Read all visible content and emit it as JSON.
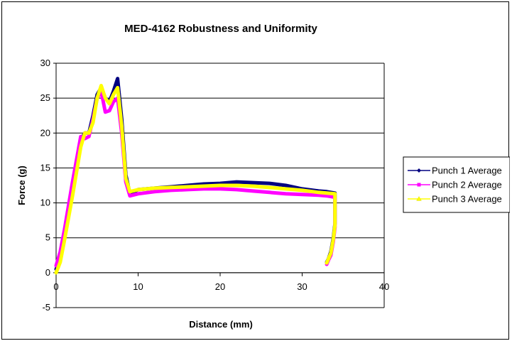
{
  "chart_data": {
    "type": "line",
    "title": "MED-4162 Robustness and Uniformity",
    "xlabel": "Distance (mm)",
    "ylabel": "Force (g)",
    "xlim": [
      0,
      40
    ],
    "ylim": [
      -5,
      30
    ],
    "xticks": [
      0,
      10,
      20,
      30,
      40
    ],
    "yticks": [
      -5,
      0,
      5,
      10,
      15,
      20,
      25,
      30
    ],
    "grid": "horizontal",
    "legend_position": "right",
    "series": [
      {
        "name": "Punch 1 Average",
        "color": "#000080",
        "x": [
          0,
          0.5,
          1,
          2,
          3,
          3.5,
          4,
          4.5,
          5,
          5.5,
          6,
          6.5,
          7,
          7.5,
          8,
          8.5,
          9,
          10,
          12,
          14,
          16,
          18,
          20,
          22,
          24,
          26,
          28,
          30,
          32,
          33,
          34,
          34,
          33.8,
          33.5,
          33.2,
          33
        ],
        "y": [
          0.5,
          2,
          5,
          12,
          19,
          20,
          20,
          22.5,
          25.5,
          26.5,
          25,
          24.5,
          26,
          27.8,
          22,
          14,
          11.3,
          11.9,
          12.1,
          12.3,
          12.5,
          12.7,
          12.8,
          13,
          12.9,
          12.8,
          12.5,
          12,
          11.7,
          11.6,
          11.4,
          7,
          5,
          3,
          2,
          1.5
        ]
      },
      {
        "name": "Punch 2 Average",
        "color": "#ff00ff",
        "x": [
          0,
          0.5,
          1,
          2,
          3,
          3.5,
          4,
          4.5,
          5,
          5.5,
          6,
          6.5,
          7,
          7.5,
          8,
          8.5,
          9,
          10,
          12,
          14,
          16,
          18,
          20,
          22,
          24,
          26,
          28,
          30,
          32,
          33,
          34,
          34,
          33.8,
          33.5,
          33.2,
          33
        ],
        "y": [
          1,
          3,
          6,
          13,
          19.5,
          19.2,
          19.5,
          22,
          25,
          26,
          23,
          23.2,
          24.5,
          25,
          20,
          13,
          11,
          11.3,
          11.6,
          11.8,
          11.9,
          12,
          12,
          11.9,
          11.7,
          11.5,
          11.3,
          11.2,
          11.1,
          11,
          10.8,
          6.5,
          4.5,
          2.5,
          1.8,
          1.2
        ]
      },
      {
        "name": "Punch 3 Average",
        "color": "#ffff00",
        "x": [
          0,
          0.5,
          1,
          2,
          3,
          3.5,
          4,
          4.5,
          5,
          5.5,
          6,
          6.5,
          7,
          7.5,
          8,
          8.5,
          9,
          10,
          12,
          14,
          16,
          18,
          20,
          22,
          24,
          26,
          28,
          30,
          32,
          33,
          34,
          34,
          33.8,
          33.5,
          33.2,
          33
        ],
        "y": [
          0,
          1.5,
          4.5,
          11,
          18,
          20,
          20,
          21.5,
          25,
          26.8,
          25,
          24.2,
          25.5,
          26.5,
          21,
          13.5,
          11.6,
          11.9,
          12.1,
          12.2,
          12.3,
          12.4,
          12.5,
          12.5,
          12.4,
          12.2,
          12,
          11.8,
          11.5,
          11.4,
          11.3,
          6.8,
          4.8,
          2.8,
          2,
          1.4
        ]
      }
    ]
  }
}
